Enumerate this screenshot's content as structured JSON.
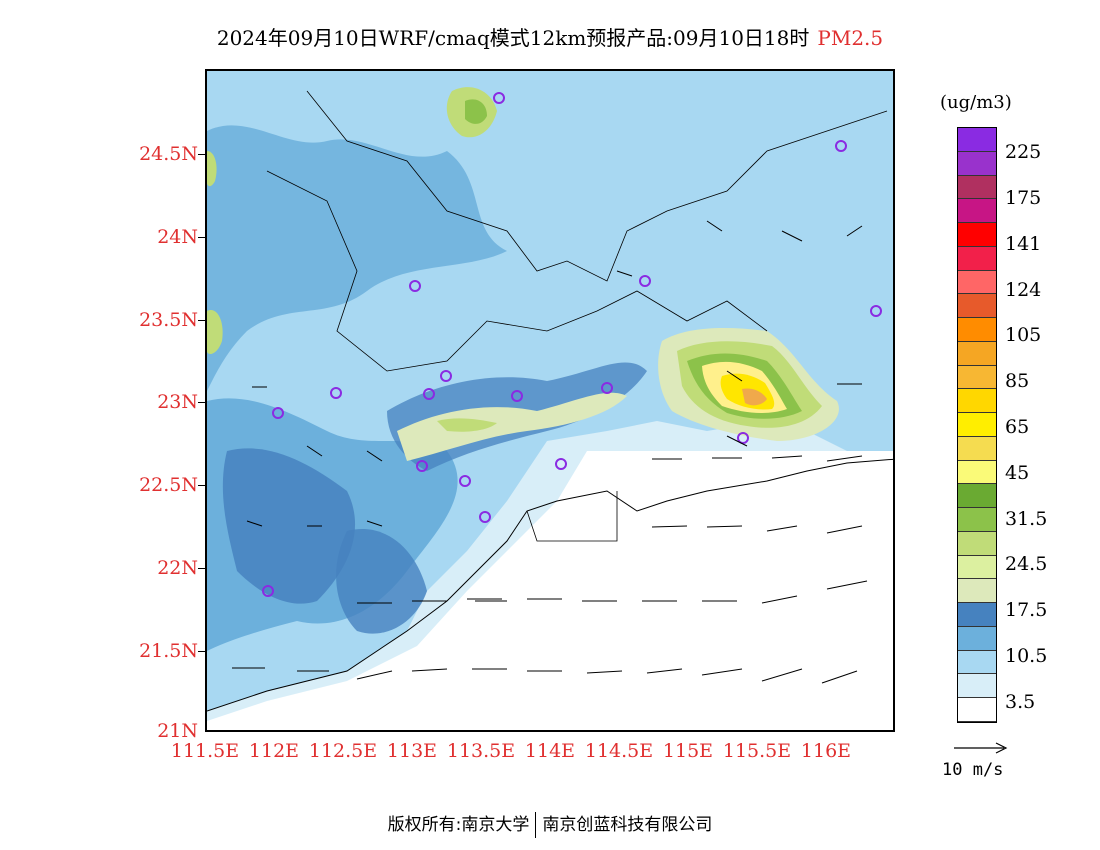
{
  "title": {
    "main": "2024年09月10日WRF/cmaq模式12km预报产品:09月10日18时",
    "variable": "PM2.5"
  },
  "map": {
    "lat_labels": [
      "24.5N",
      "24N",
      "23.5N",
      "23N",
      "22.5N",
      "22N",
      "21.5N",
      "21N"
    ],
    "lon_labels": [
      "111.5E",
      "112E",
      "112.5E",
      "113E",
      "113.5E",
      "114E",
      "114.5E",
      "115E",
      "115.5E",
      "116E"
    ],
    "background_color": "#d8eef8",
    "land_low_color": "#a8d8f2",
    "mid_color": "#6cb0dc",
    "high_color": "#4682bf",
    "plume_colors": [
      "#dde9bb",
      "#c0dc78",
      "#8cc24a",
      "#fff08c",
      "#ffe600",
      "#f0a94b"
    ]
  },
  "colorbar": {
    "units": "(ug/m3)",
    "labels": [
      "225",
      "175",
      "141",
      "124",
      "105",
      "85",
      "65",
      "45",
      "31.5",
      "24.5",
      "17.5",
      "10.5",
      "3.5"
    ],
    "colors": [
      "#8a2be2",
      "#9932cc",
      "#b03060",
      "#c71585",
      "#ff0000",
      "#f2204a",
      "#ff6666",
      "#e75a2b",
      "#ff8c00",
      "#f5a623",
      "#f7b733",
      "#ffd700",
      "#ffee00",
      "#f5dc50",
      "#fafa78",
      "#6aaa32",
      "#8cc24a",
      "#c0dc78",
      "#dcf0a0",
      "#dde9bb",
      "#4682bf",
      "#6cb0dc",
      "#a8d8f2",
      "#d8eef8",
      "#ffffff"
    ]
  },
  "wind_reference": {
    "label": "10 m/s"
  },
  "footer": {
    "left": "版权所有:南京大学",
    "right": "南京创蓝科技有限公司"
  }
}
